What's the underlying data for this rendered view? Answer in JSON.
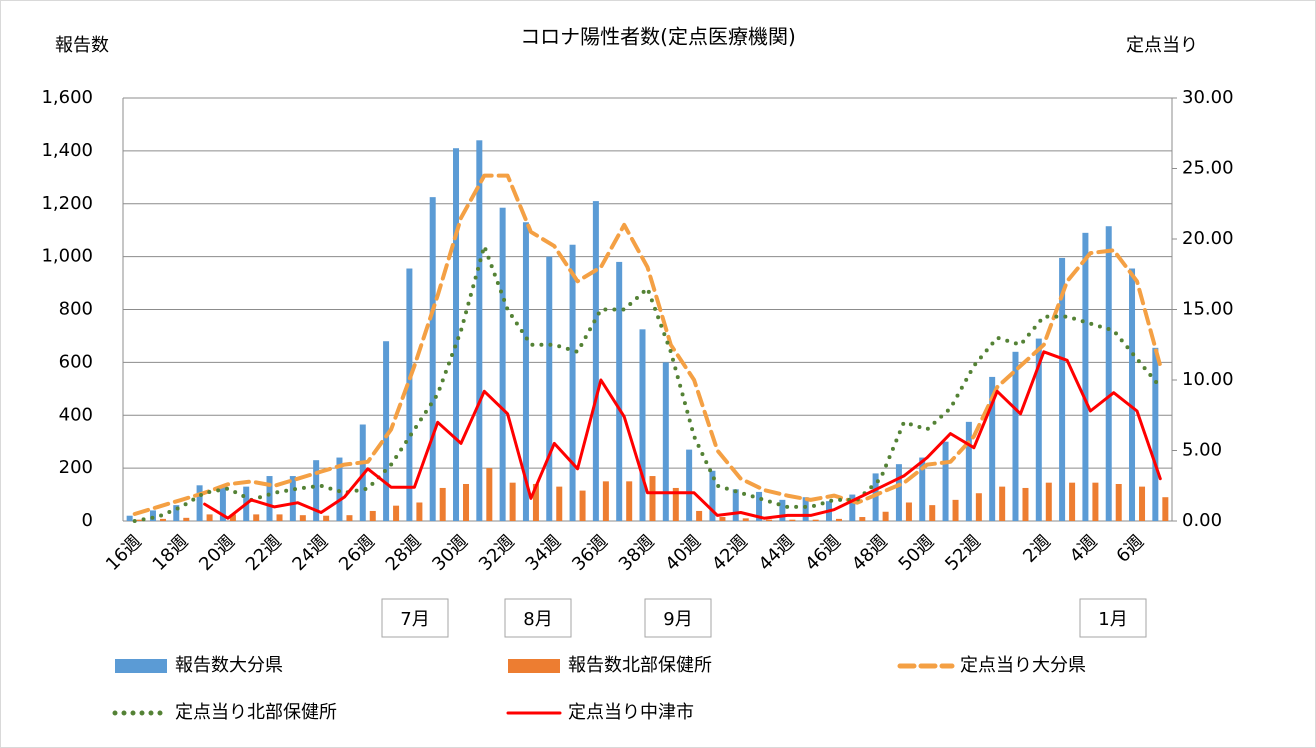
{
  "chart_data": {
    "type": "combo",
    "title": "コロナ陽性者数(定点医療機関)",
    "y_label": "報告数",
    "y2_label": "定点当り",
    "categories": [
      "16週",
      null,
      "18週",
      null,
      "20週",
      null,
      "22週",
      null,
      "24週",
      null,
      "26週",
      null,
      "28週",
      null,
      "30週",
      null,
      "32週",
      null,
      "34週",
      null,
      "36週",
      null,
      "38週",
      null,
      "40週",
      null,
      "42週",
      null,
      "44週",
      null,
      "46週",
      null,
      "48週",
      null,
      "50週",
      null,
      "52週",
      null,
      null,
      "2週",
      null,
      "4週",
      null,
      "6週",
      null
    ],
    "ylim": [
      0,
      1600
    ],
    "yticks": [
      0,
      200,
      400,
      600,
      800,
      {
        "value": 1000,
        "label": "1,000"
      },
      {
        "value": 1200,
        "label": "1,200"
      },
      {
        "value": 1400,
        "label": "1,400"
      },
      {
        "value": 1600,
        "label": "1,600"
      }
    ],
    "y2lim": [
      0,
      30
    ],
    "y2ticks": [
      {
        "value": 0,
        "label": "0.00"
      },
      {
        "value": 5,
        "label": "5.00"
      },
      {
        "value": 10,
        "label": "10.00"
      },
      {
        "value": 15,
        "label": "15.00"
      },
      {
        "value": 20,
        "label": "20.00"
      },
      {
        "value": 25,
        "label": "25.00"
      },
      {
        "value": 30,
        "label": "30.00"
      }
    ],
    "grid": true,
    "annotations": [
      "7月",
      "8月",
      "9月",
      "1月"
    ],
    "series": [
      {
        "name": "報告数大分県",
        "type": "bar",
        "color": "#5b9bd5",
        "values": [
          20,
          40,
          60,
          135,
          130,
          130,
          170,
          170,
          230,
          240,
          365,
          680,
          955,
          1225,
          1410,
          1440,
          1185,
          1130,
          1000,
          1045,
          1210,
          980,
          725,
          600,
          270,
          190,
          120,
          110,
          80,
          90,
          75,
          100,
          180,
          215,
          240,
          300,
          375,
          545,
          640,
          690,
          995,
          1090,
          1115,
          955,
          655
        ]
      },
      {
        "name": "報告数北部保健所",
        "type": "bar",
        "color": "#ed7d31",
        "values": [
          5,
          8,
          12,
          25,
          25,
          25,
          25,
          22,
          20,
          22,
          38,
          58,
          70,
          125,
          140,
          200,
          145,
          140,
          130,
          115,
          150,
          150,
          170,
          125,
          38,
          15,
          10,
          5,
          5,
          5,
          8,
          15,
          35,
          70,
          60,
          80,
          105,
          130,
          125,
          145,
          145,
          145,
          140,
          130,
          90
        ]
      },
      {
        "name": "定点当り大分県",
        "type": "line",
        "axis": "y2",
        "color": "#f4a044",
        "dash": "14 7",
        "values": [
          0.5,
          1,
          1.5,
          2,
          2.6,
          2.8,
          2.5,
          3,
          3.5,
          4,
          4.2,
          6.5,
          11,
          16,
          21.5,
          24.5,
          24.5,
          20.5,
          19.5,
          17,
          18,
          21,
          18,
          12.5,
          10,
          5,
          3,
          2.2,
          1.8,
          1.5,
          1.8,
          1.3,
          2,
          2.7,
          4,
          4.2,
          6,
          9.5,
          11,
          12.5,
          17,
          19,
          19.2,
          17,
          11
        ]
      },
      {
        "name": "定点当り北部保健所",
        "type": "line",
        "axis": "y2",
        "color": "#548235",
        "dash": "0 9",
        "values": [
          0,
          0.3,
          1,
          2,
          2.3,
          1.5,
          2,
          2.3,
          2.5,
          2,
          2.3,
          4,
          6.5,
          9,
          13.5,
          19.5,
          15,
          12.5,
          12.5,
          12,
          15,
          15,
          16.5,
          12,
          6,
          2.5,
          2,
          1.5,
          1,
          1,
          1.5,
          1.5,
          3,
          7,
          6.5,
          8,
          11,
          13,
          12.5,
          14.5,
          14.5,
          14,
          13.5,
          11.5,
          9.5
        ]
      },
      {
        "name": "定点当り中津市",
        "type": "line",
        "axis": "y2",
        "color": "#ff0000",
        "dash": "none",
        "values": [
          null,
          null,
          null,
          1.2,
          0.2,
          1.5,
          1,
          1.3,
          0.6,
          1.7,
          3.7,
          2.4,
          2.4,
          7,
          5.5,
          9.2,
          7.6,
          1.6,
          5.5,
          3.7,
          10,
          7.4,
          2,
          2,
          2,
          0.4,
          0.6,
          0.2,
          0.4,
          0.4,
          0.8,
          1.6,
          2.4,
          3.2,
          4.5,
          6.2,
          5.2,
          9.2,
          7.6,
          12,
          11.4,
          7.8,
          9.1,
          7.8,
          3
        ]
      }
    ]
  }
}
